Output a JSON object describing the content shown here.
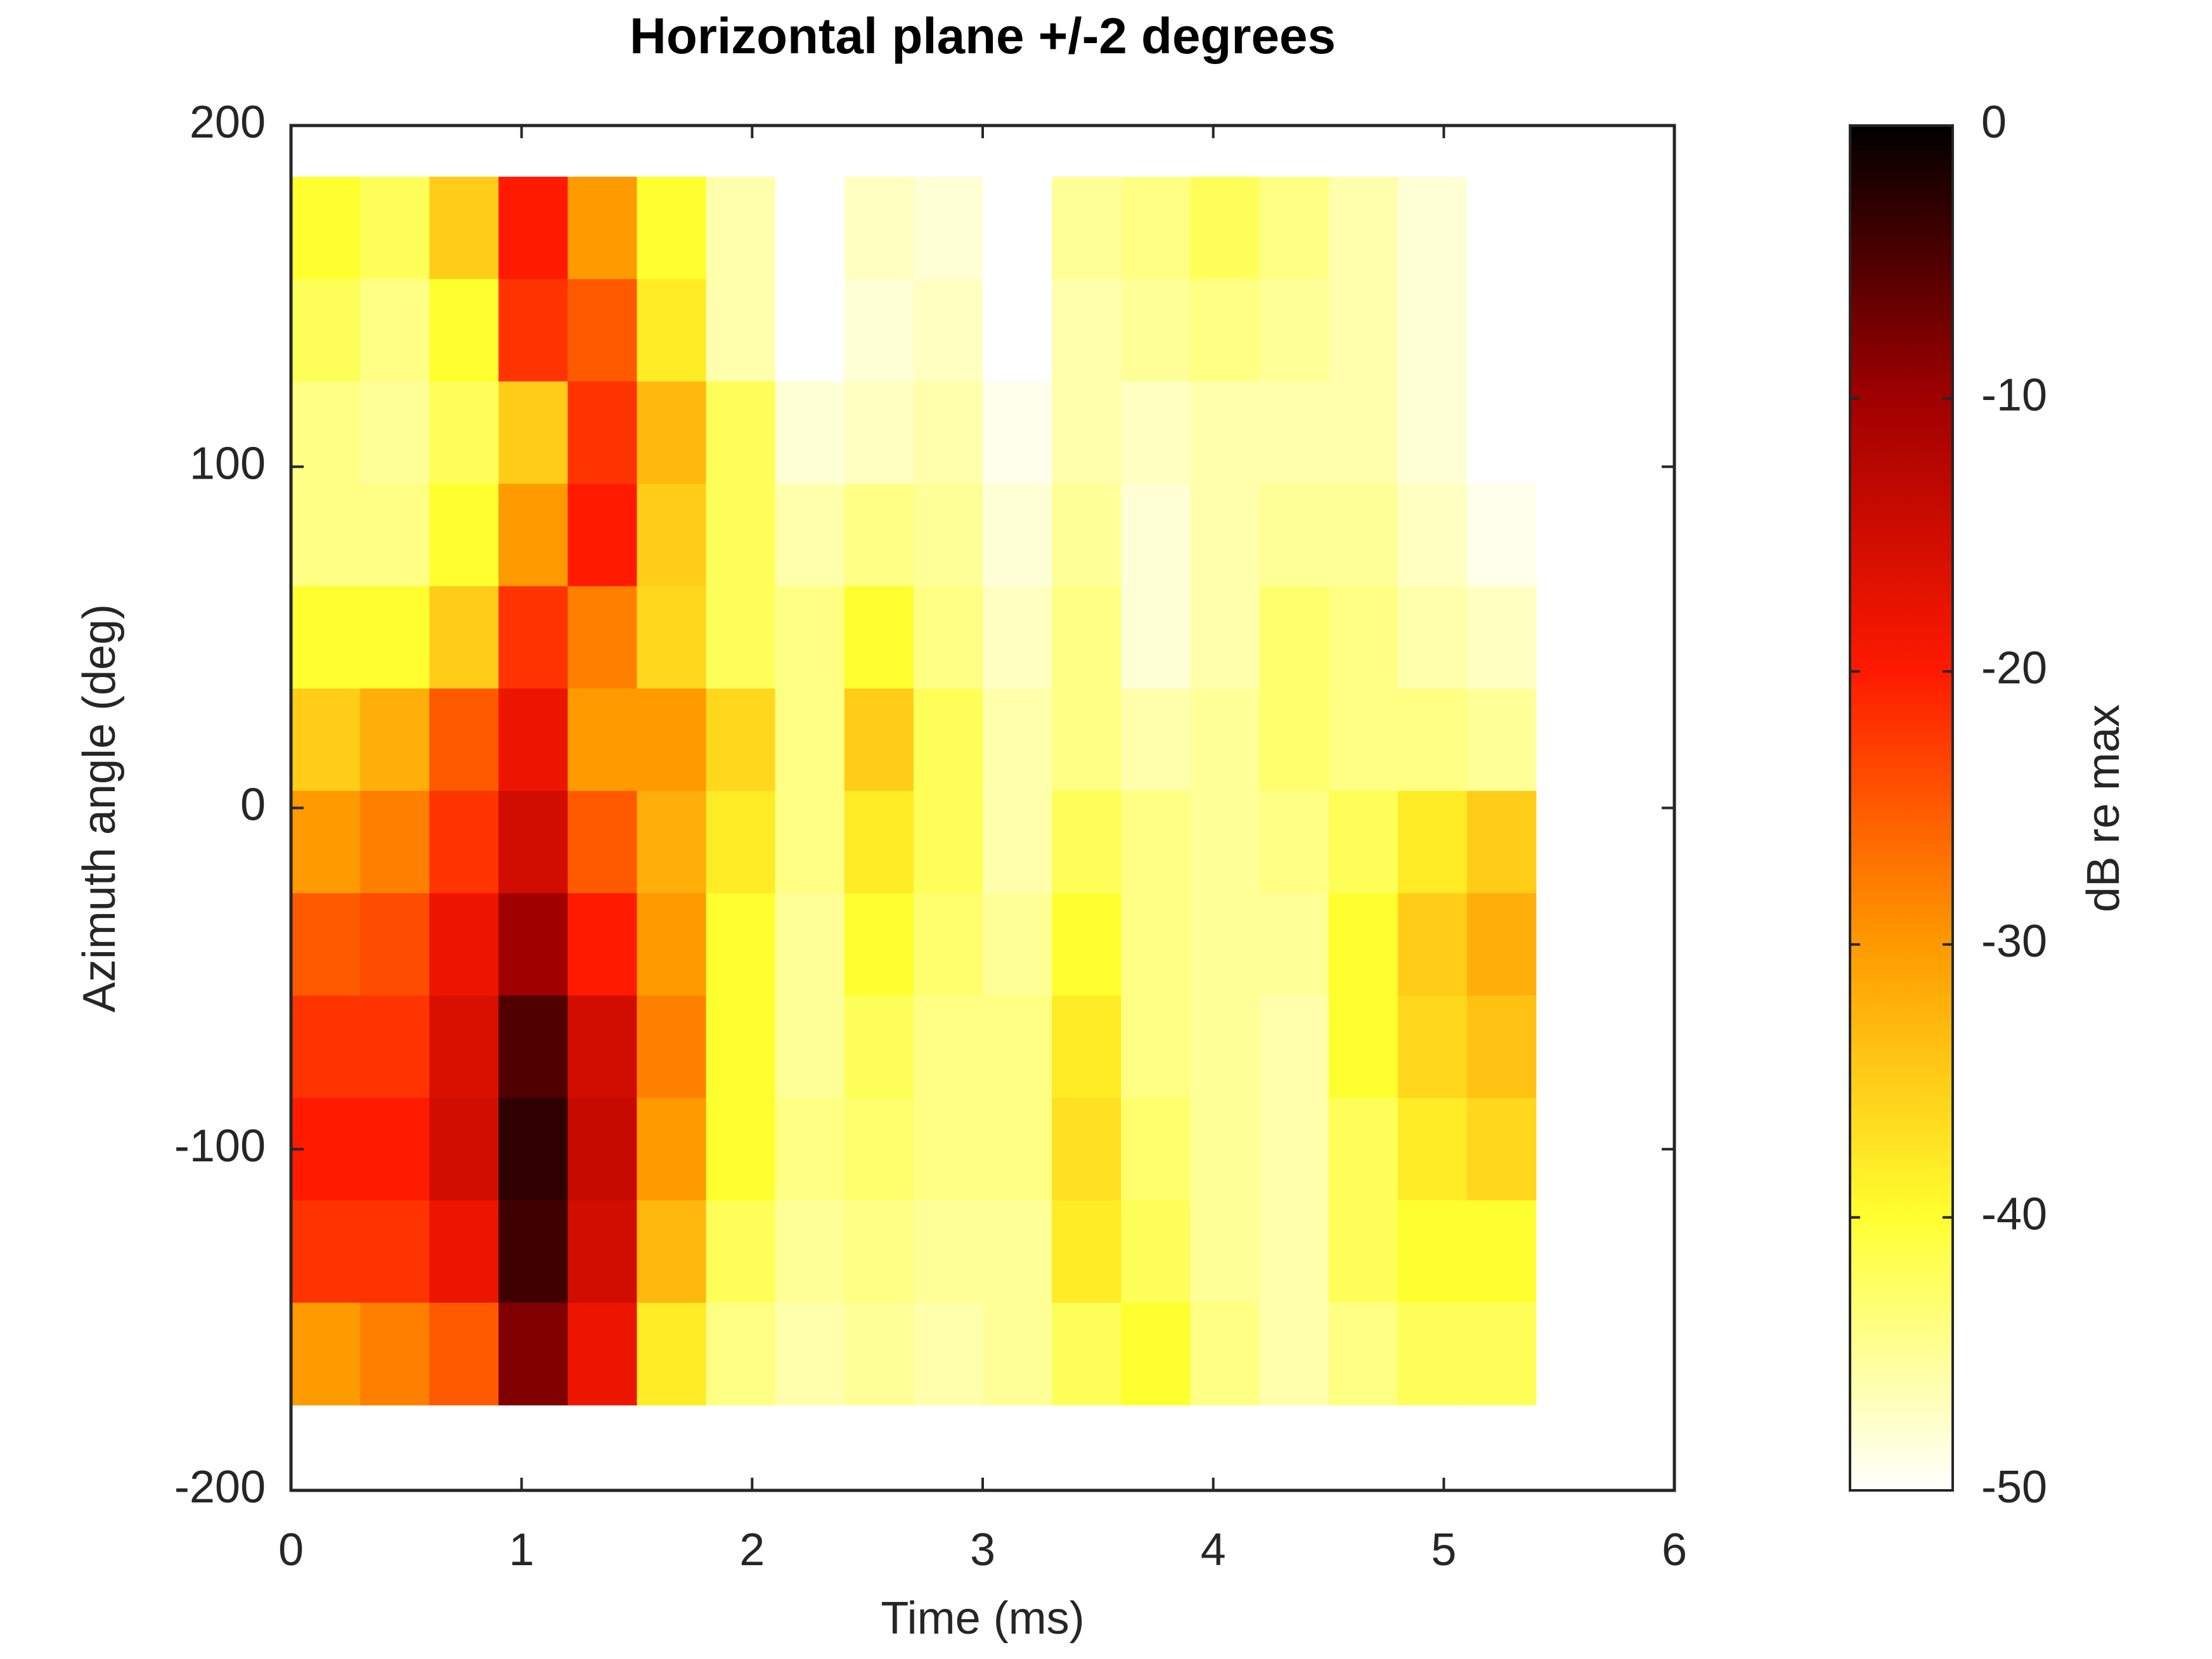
{
  "chart_data": {
    "type": "heatmap",
    "title": "Horizontal plane +/-2 degrees",
    "xlabel": "Time (ms)",
    "ylabel": "Azimuth angle (deg)",
    "colorbar_label": "dB re max",
    "x": [
      0.15,
      0.45,
      0.75,
      1.05,
      1.35,
      1.65,
      1.95,
      2.25,
      2.55,
      2.85,
      3.15,
      3.45,
      3.75,
      4.05,
      4.35,
      4.65,
      4.95,
      5.25
    ],
    "y": [
      170,
      140,
      110,
      80,
      50,
      20,
      -10,
      -40,
      -70,
      -100,
      -130,
      -160
    ],
    "z": [
      [
        -40,
        -42,
        -35,
        -20,
        -30,
        -40,
        -46,
        -50,
        -47,
        -48,
        -50,
        -45,
        -44,
        -42,
        -44,
        -46,
        -48,
        -50
      ],
      [
        -42,
        -44,
        -40,
        -22,
        -25,
        -38,
        -46,
        -50,
        -48,
        -47,
        -50,
        -46,
        -45,
        -44,
        -45,
        -46,
        -48,
        -50
      ],
      [
        -44,
        -45,
        -42,
        -35,
        -22,
        -33,
        -42,
        -48,
        -47,
        -46,
        -49,
        -46,
        -47,
        -46,
        -46,
        -46,
        -48,
        -50
      ],
      [
        -44,
        -44,
        -40,
        -30,
        -20,
        -35,
        -42,
        -46,
        -44,
        -45,
        -48,
        -45,
        -48,
        -46,
        -45,
        -45,
        -47,
        -49
      ],
      [
        -40,
        -40,
        -35,
        -22,
        -28,
        -36,
        -42,
        -44,
        -40,
        -44,
        -47,
        -44,
        -48,
        -46,
        -43,
        -44,
        -46,
        -47
      ],
      [
        -35,
        -32,
        -25,
        -18,
        -30,
        -30,
        -36,
        -44,
        -35,
        -42,
        -46,
        -44,
        -46,
        -45,
        -43,
        -44,
        -44,
        -45
      ],
      [
        -30,
        -28,
        -22,
        -15,
        -25,
        -32,
        -38,
        -44,
        -38,
        -42,
        -46,
        -42,
        -44,
        -45,
        -44,
        -42,
        -38,
        -35
      ],
      [
        -25,
        -24,
        -18,
        -10,
        -20,
        -30,
        -40,
        -45,
        -40,
        -43,
        -45,
        -40,
        -44,
        -45,
        -45,
        -40,
        -35,
        -32
      ],
      [
        -22,
        -22,
        -16,
        -5,
        -15,
        -28,
        -40,
        -45,
        -42,
        -44,
        -44,
        -38,
        -44,
        -45,
        -46,
        -40,
        -36,
        -34
      ],
      [
        -20,
        -20,
        -15,
        -3,
        -14,
        -30,
        -40,
        -44,
        -43,
        -44,
        -44,
        -37,
        -43,
        -45,
        -46,
        -42,
        -38,
        -36
      ],
      [
        -22,
        -22,
        -18,
        -4,
        -15,
        -33,
        -42,
        -45,
        -44,
        -45,
        -45,
        -38,
        -42,
        -45,
        -46,
        -42,
        -40,
        -40
      ],
      [
        -30,
        -28,
        -25,
        -8,
        -18,
        -38,
        -44,
        -46,
        -45,
        -46,
        -45,
        -42,
        -40,
        -44,
        -46,
        -44,
        -42,
        -42
      ]
    ],
    "xlim": [
      0,
      6
    ],
    "xticks": [
      0,
      1,
      2,
      3,
      4,
      5,
      6
    ],
    "ylim": [
      -200,
      200
    ],
    "yticks": [
      -200,
      -100,
      0,
      100,
      200
    ],
    "clim": [
      -50,
      0
    ],
    "cticks": [
      -50,
      -40,
      -30,
      -20,
      -10,
      0
    ],
    "colormap": [
      "#ffffff",
      "#ffff30",
      "#ff9a00",
      "#ff1a00",
      "#a00000",
      "#000000"
    ]
  }
}
